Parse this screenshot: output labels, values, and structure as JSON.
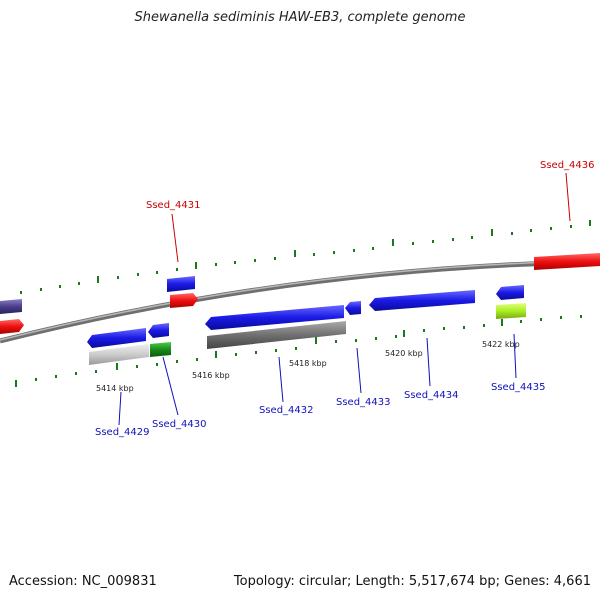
{
  "title": "Shewanella sediminis HAW-EB3, complete genome",
  "footer": {
    "accession": "Accession: NC_009831",
    "summary": "Topology: circular; Length: 5,517,674 bp; Genes: 4,661"
  },
  "ticks": [
    "5414 kbp",
    "5416 kbp",
    "5418 kbp",
    "5420 kbp",
    "5422 kbp"
  ],
  "gene_labels": {
    "ssed_4429": "Ssed_4429",
    "ssed_4430": "Ssed_4430",
    "ssed_4431": "Ssed_4431",
    "ssed_4432": "Ssed_4432",
    "ssed_4433": "Ssed_4433",
    "ssed_4434": "Ssed_4434",
    "ssed_4435": "Ssed_4435",
    "ssed_4436": "Ssed_4436"
  },
  "colors": {
    "forward_gene": "#ee0000",
    "reverse_gene": "#1010dd",
    "reverse_label": "#1010bb",
    "forward_label": "#cc0000",
    "backbone": "#808080",
    "tick": "#1a7a1a"
  }
}
